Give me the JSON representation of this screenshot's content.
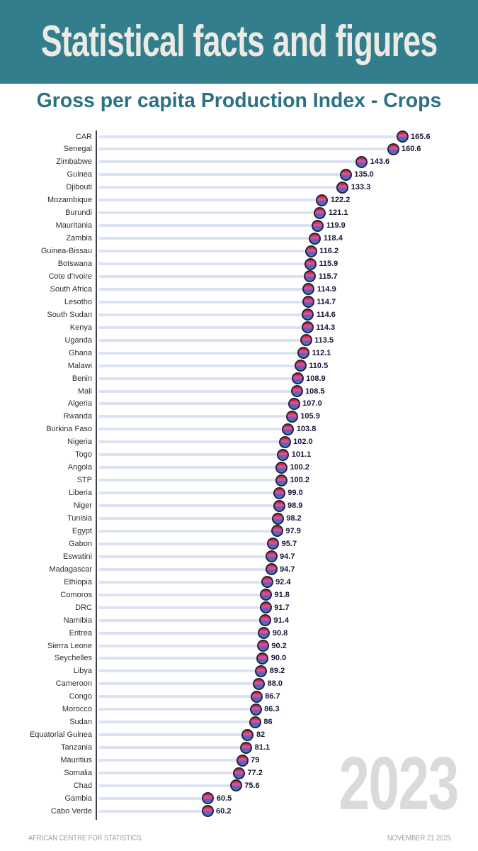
{
  "banner": {
    "title": "Statistical facts and figures",
    "bg_color": "#327E8D",
    "text_color": "#ECEAE4"
  },
  "subtitle": "Gross per capita Production Index - Crops",
  "watermark": "2023",
  "footer": {
    "left": "AFRICAN CENTRE FOR STATISTICS",
    "right": "NOVEMBER 21 2025"
  },
  "colors": {
    "subtitle_color": "#2B7282",
    "axis_color": "#3C3C4C",
    "stem_color": "#DCE2F2",
    "marker_border": "#23233F",
    "marker_gradient": [
      "#9E2B25",
      "#D6365C",
      "#E2559E",
      "#9B4FAE",
      "#4668C6",
      "#3796BB"
    ],
    "country_label_color": "#2F2F2F",
    "value_label_color": "#16163A",
    "watermark_color": "#D9DADB",
    "footer_color": "#9AA0A6"
  },
  "chart_data": {
    "type": "bar",
    "variant": "lollipop",
    "orientation": "horizontal",
    "title": "Gross per capita Production Index - Crops",
    "xlabel": "",
    "ylabel": "",
    "xlim": [
      0,
      180
    ],
    "grid": false,
    "legend": null,
    "value_labels_shown": true,
    "categories": [
      "CAR",
      "Senegal",
      "Zimbabwe",
      "Guinea",
      "Djibouti",
      "Mozambique",
      "Burundi",
      "Mauritania",
      "Zambia",
      "Guinea-Bissau",
      "Botswana",
      "Cote d'Ivoire",
      "South Africa",
      "Lesotho",
      "South Sudan",
      "Kenya",
      "Uganda",
      "Ghana",
      "Malawi",
      "Benin",
      "Mali",
      "Algeria",
      "Rwanda",
      "Burkina Faso",
      "Nigeria",
      "Togo",
      "Angola",
      "STP",
      "Liberia",
      "Niger",
      "Tunisia",
      "Egypt",
      "Gabon",
      "Eswatini",
      "Madagascar",
      "Ethiopia",
      "Comoros",
      "DRC",
      "Namibia",
      "Eritrea",
      "Sierra Leone",
      "Seychelles",
      "Libya",
      "Cameroon",
      "Congo",
      "Morocco",
      "Sudan",
      "Equatorial Guinea",
      "Tanzania",
      "Mauritius",
      "Somalia",
      "Chad",
      "Gambia",
      "Cabo Verde"
    ],
    "values": [
      165.6,
      160.6,
      143.6,
      135.0,
      133.3,
      122.2,
      121.1,
      119.9,
      118.4,
      116.2,
      115.9,
      115.7,
      114.9,
      114.7,
      114.6,
      114.3,
      113.5,
      112.1,
      110.5,
      108.9,
      108.5,
      107.0,
      105.9,
      103.8,
      102.0,
      101.1,
      100.2,
      100.2,
      99.0,
      98.9,
      98.2,
      97.9,
      95.7,
      94.7,
      94.7,
      92.4,
      91.8,
      91.7,
      91.4,
      90.8,
      90.2,
      90.0,
      89.2,
      88.0,
      86.7,
      86.3,
      86,
      82,
      81.1,
      79,
      77.2,
      75.6,
      60.5,
      60.2
    ],
    "value_labels": [
      "165.6",
      "160.6",
      "143.6",
      "135.0",
      "133.3",
      "122.2",
      "121.1",
      "119.9",
      "118.4",
      "116.2",
      "115.9",
      "115.7",
      "114.9",
      "114.7",
      "114.6",
      "114.3",
      "113.5",
      "112.1",
      "110.5",
      "108.9",
      "108.5",
      "107.0",
      "105.9",
      "103.8",
      "102.0",
      "101.1",
      "100.2",
      "100.2",
      "99.0",
      "98.9",
      "98.2",
      "97.9",
      "95.7",
      "94.7",
      "94.7",
      "92.4",
      "91.8",
      "91.7",
      "91.4",
      "90.8",
      "90.2",
      "90.0",
      "89.2",
      "88.0",
      "86.7",
      "86.3",
      "86",
      "82",
      "81.1",
      "79",
      "77.2",
      "75.6",
      "60.5",
      "60.2"
    ]
  }
}
